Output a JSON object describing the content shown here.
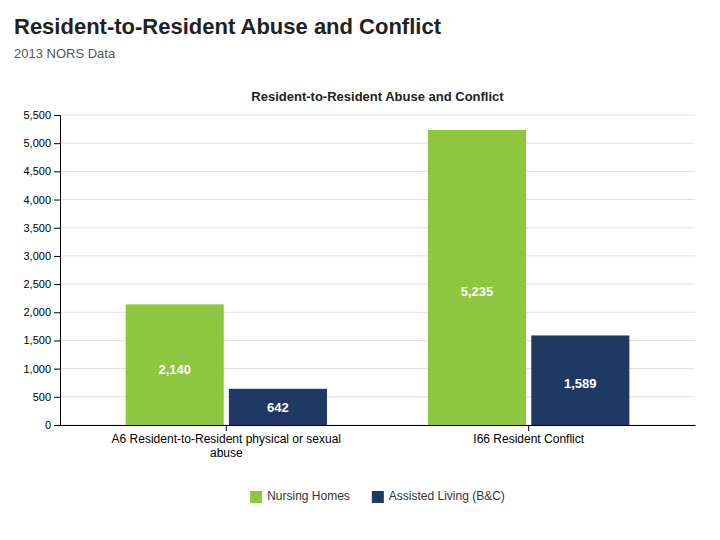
{
  "chart_data": {
    "type": "bar",
    "title": "Resident-to-Resident Abuse and Conflict",
    "subtitle": "2013 NORS Data",
    "categories": [
      "A6 Resident-to-Resident physical or sexual\nabuse",
      "I66 Resident Conflict"
    ],
    "series": [
      {
        "name": "Nursing Homes",
        "color": "#8DC63F",
        "values": [
          2140,
          5235
        ],
        "value_labels": [
          "2,140",
          "5,235"
        ]
      },
      {
        "name": "Assisted Living (B&C)",
        "color": "#1F3864",
        "values": [
          642,
          1589
        ],
        "value_labels": [
          "642",
          "1,589"
        ]
      }
    ],
    "ylim": [
      0,
      5500
    ],
    "yticks": [
      0,
      500,
      {
        "value": 1000,
        "label": "1,000"
      },
      {
        "value": 1500,
        "label": "1,500"
      },
      {
        "value": 2000,
        "label": "2,000"
      },
      {
        "value": 2500,
        "label": "2,500"
      },
      {
        "value": 3000,
        "label": "3,000"
      },
      {
        "value": 3500,
        "label": "3,500"
      },
      {
        "value": 4000,
        "label": "4,000"
      },
      {
        "value": 4500,
        "label": "4,500"
      },
      {
        "value": 5000,
        "label": "5,000"
      },
      {
        "value": 5500,
        "label": "5,500"
      }
    ],
    "grid": true,
    "legend": "bottom",
    "data_labels": true
  }
}
